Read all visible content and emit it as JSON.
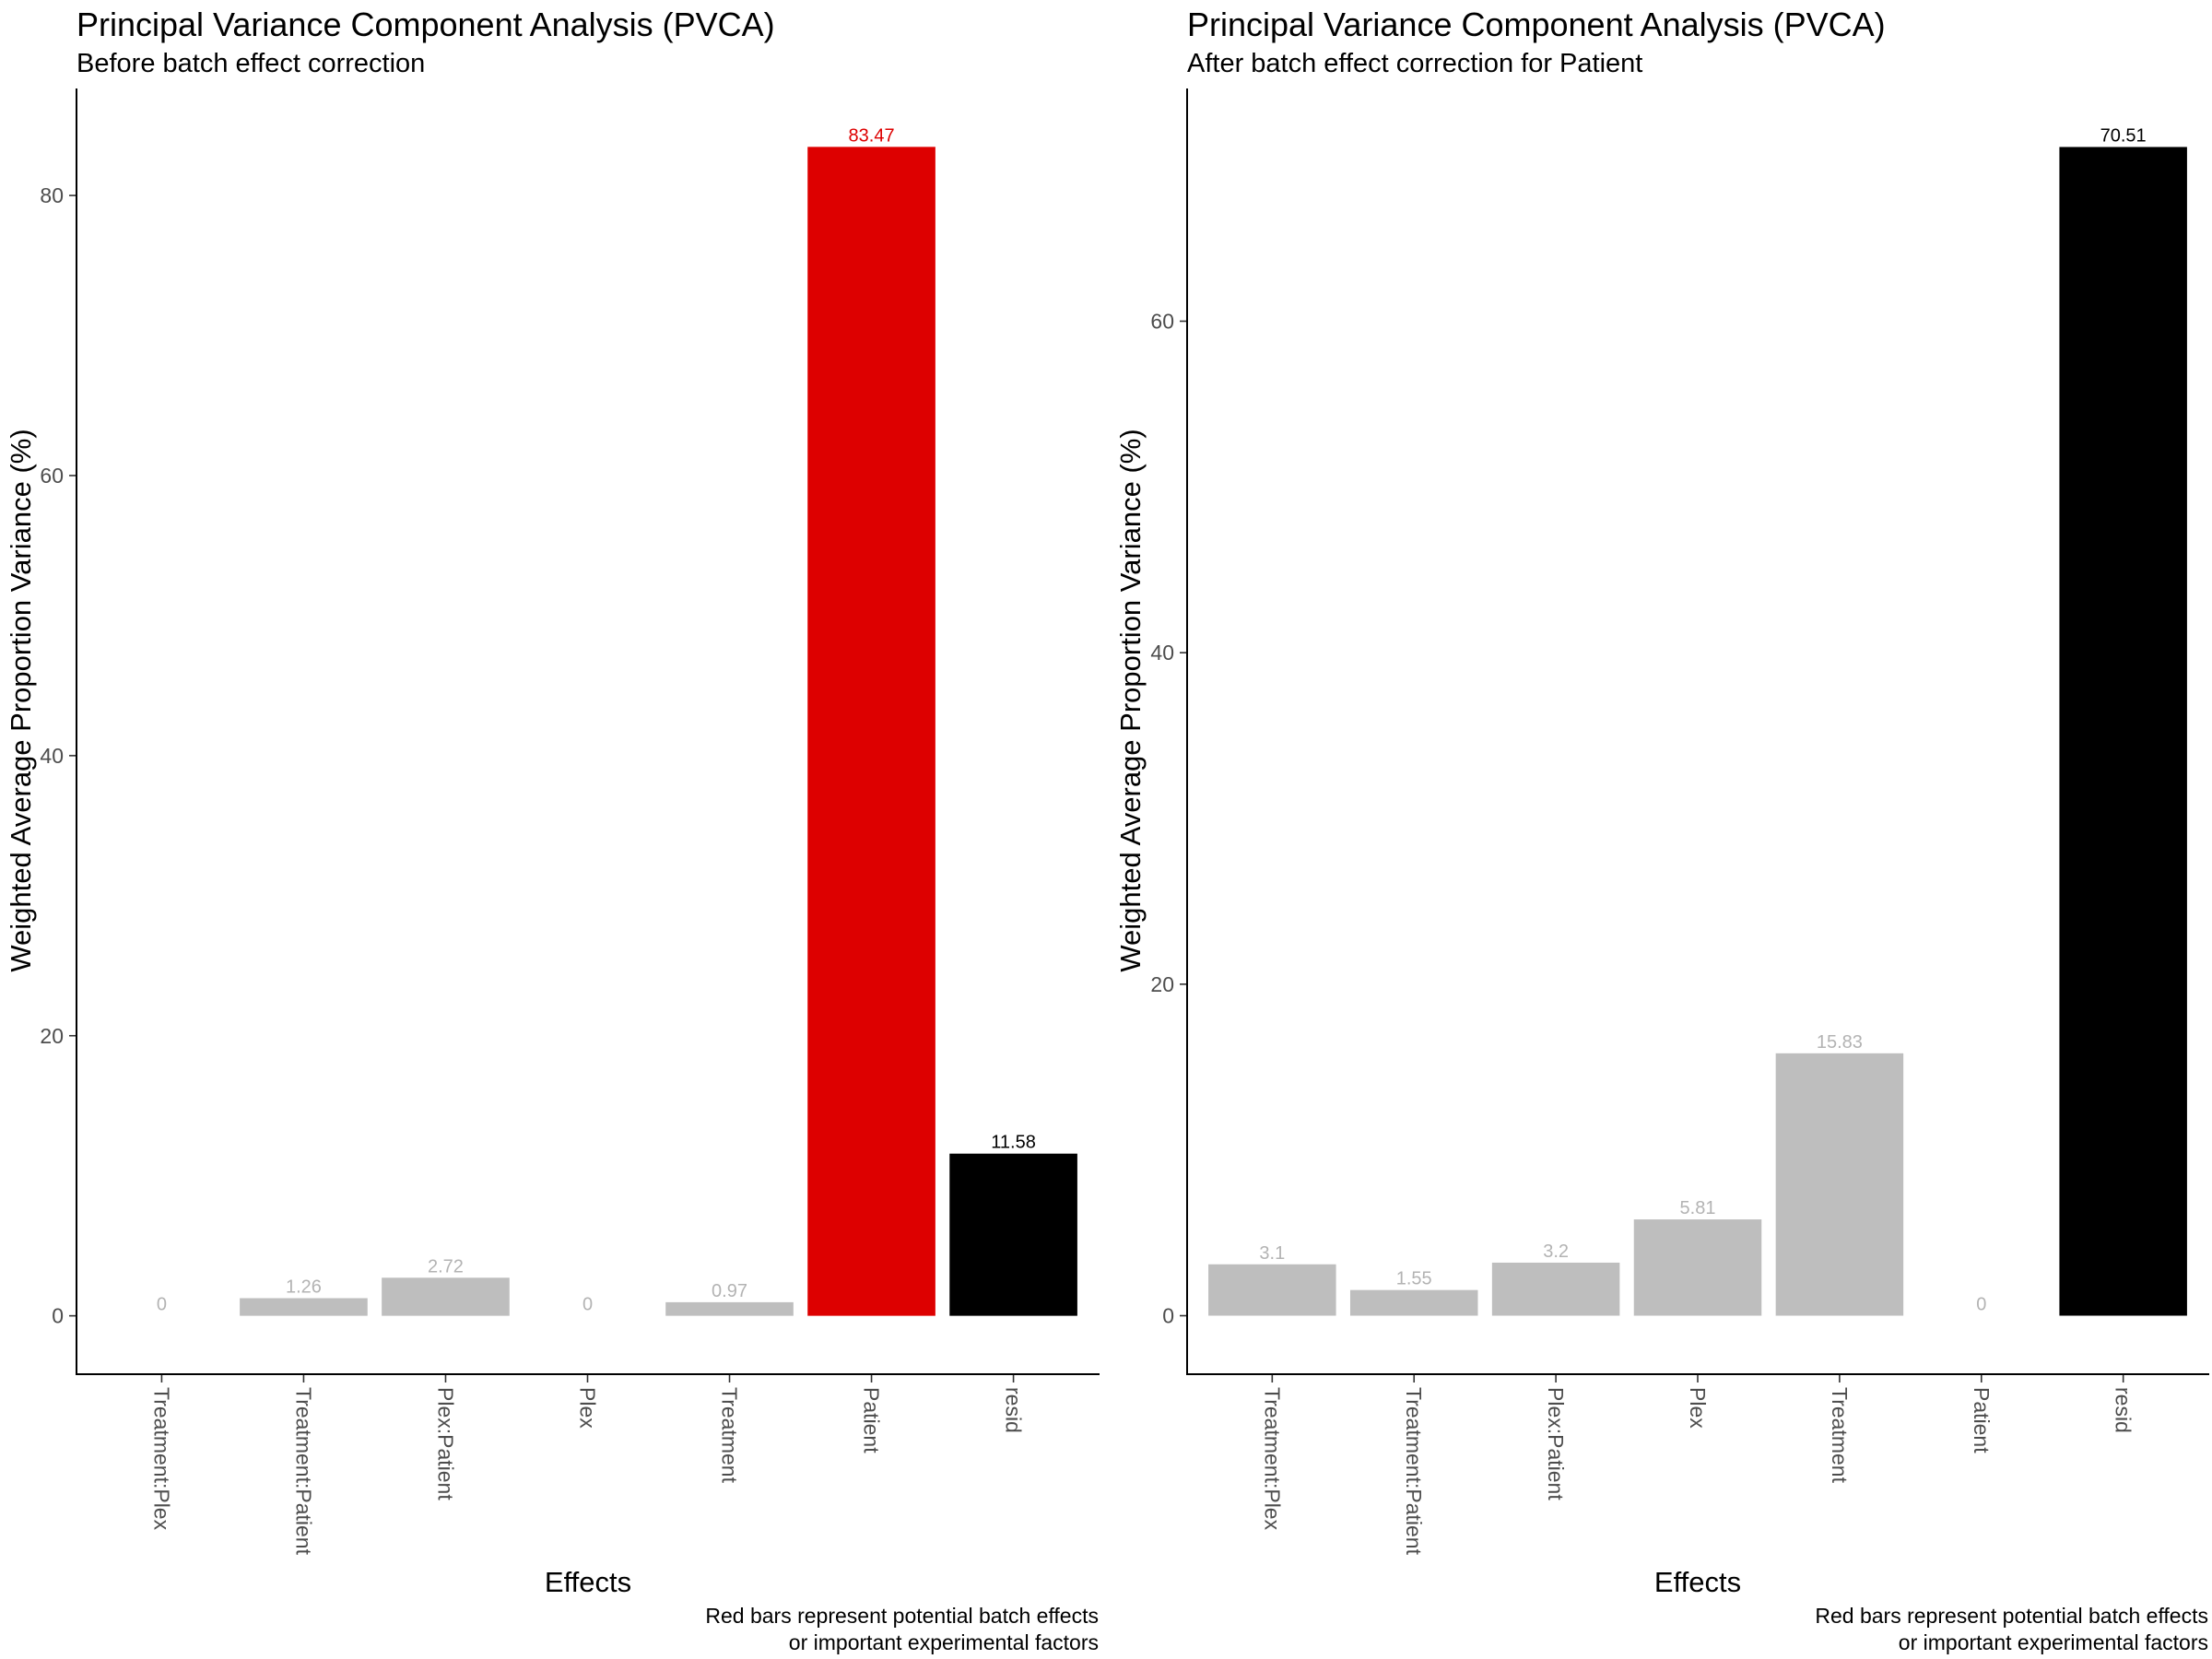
{
  "chart_data": [
    {
      "type": "bar",
      "title": "Principal Variance Component Analysis (PVCA)",
      "subtitle": "Before batch effect correction",
      "xlabel": "Effects",
      "ylabel": "Weighted Average Proportion Variance (%)",
      "caption_lines": [
        "Red bars represent potential batch effects",
        "or important experimental factors"
      ],
      "categories": [
        "Treatment:Plex",
        "Treatment:Patient",
        "Plex:Patient",
        "Plex",
        "Treatment",
        "Patient",
        "resid"
      ],
      "values": [
        0,
        1.26,
        2.72,
        0,
        0.97,
        83.47,
        11.58
      ],
      "value_labels": [
        "0",
        "1.26",
        "2.72",
        "0",
        "0.97",
        "83.47",
        "11.58"
      ],
      "bar_colors": [
        "#bebebe",
        "#bebebe",
        "#bebebe",
        "#bebebe",
        "#bebebe",
        "#dd0000",
        "#000000"
      ],
      "label_colors": [
        "#b3b3b3",
        "#b3b3b3",
        "#b3b3b3",
        "#b3b3b3",
        "#b3b3b3",
        "#dd0000",
        "#000000"
      ],
      "yticks": [
        "0",
        "20",
        "40",
        "60",
        "80"
      ],
      "ylim": [
        -4.17,
        87.64
      ],
      "grid": false,
      "legend": "none"
    },
    {
      "type": "bar",
      "title": "Principal Variance Component Analysis (PVCA)",
      "subtitle": "After batch effect correction for Patient",
      "xlabel": "Effects",
      "ylabel": "Weighted Average Proportion Variance (%)",
      "caption_lines": [
        "Red bars represent potential batch effects",
        "or important experimental factors"
      ],
      "categories": [
        "Treatment:Plex",
        "Treatment:Patient",
        "Plex:Patient",
        "Plex",
        "Treatment",
        "Patient",
        "resid"
      ],
      "values": [
        3.1,
        1.55,
        3.2,
        5.81,
        15.83,
        0,
        70.51
      ],
      "value_labels": [
        "3.1",
        "1.55",
        "3.2",
        "5.81",
        "15.83",
        "0",
        "70.51"
      ],
      "bar_colors": [
        "#bebebe",
        "#bebebe",
        "#bebebe",
        "#bebebe",
        "#bebebe",
        "#bebebe",
        "#000000"
      ],
      "label_colors": [
        "#b3b3b3",
        "#b3b3b3",
        "#b3b3b3",
        "#b3b3b3",
        "#b3b3b3",
        "#b3b3b3",
        "#000000"
      ],
      "yticks": [
        "0",
        "20",
        "40",
        "60"
      ],
      "ylim": [
        -3.53,
        74.04
      ],
      "grid": false,
      "legend": "none"
    }
  ]
}
